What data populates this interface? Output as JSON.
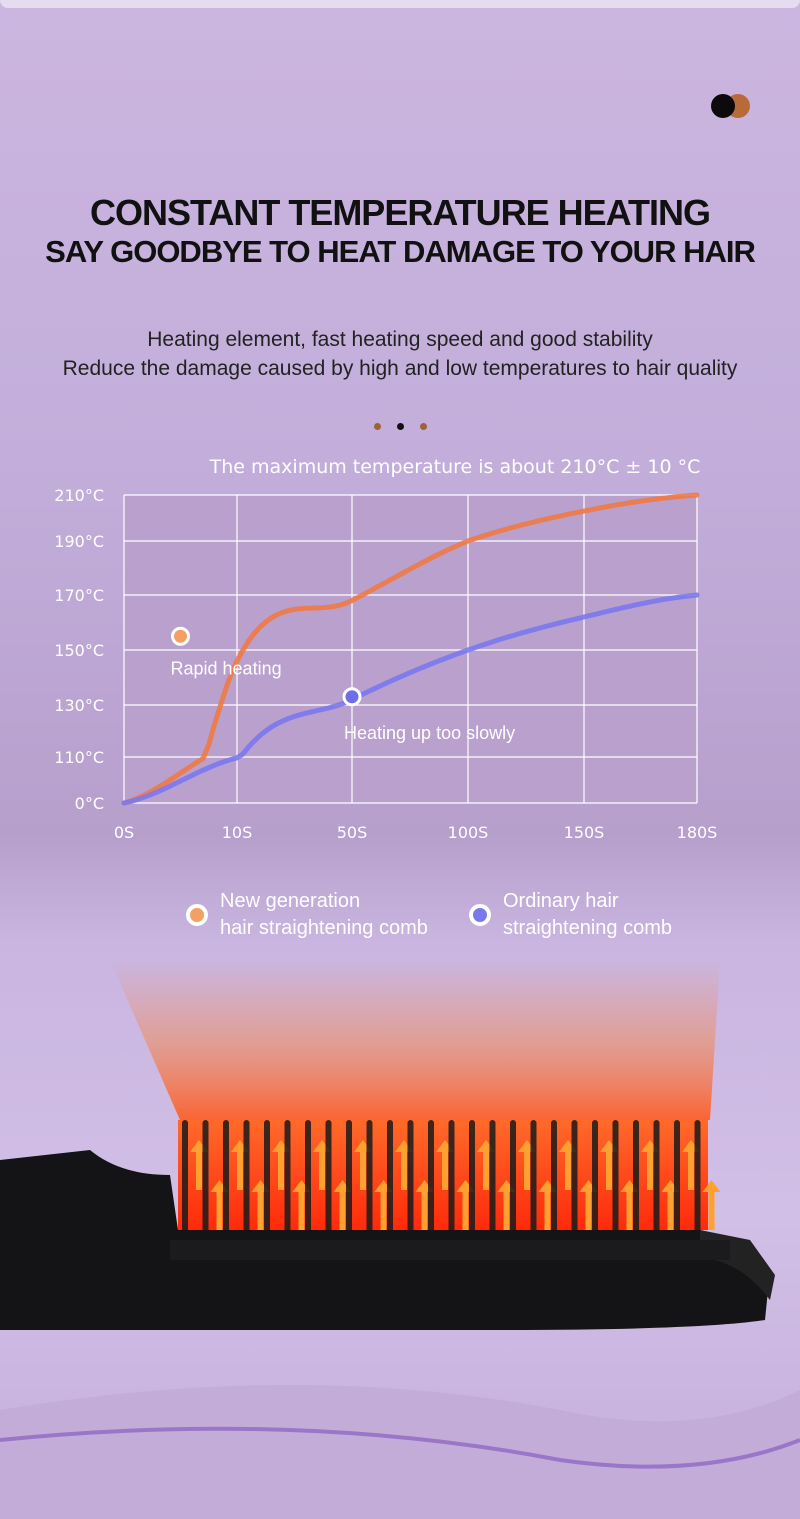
{
  "swatches": [
    {
      "color": "#0d0a0c"
    },
    {
      "color": "#b86a38"
    }
  ],
  "header": {
    "title": "CONSTANT TEMPERATURE HEATING",
    "subtitle": "SAY GOODBYE TO HEAT DAMAGE TO YOUR HAIR",
    "line1": "Heating element, fast heating speed and good stability",
    "line2": "Reduce the damage caused by high and low temperatures to hair quality"
  },
  "dots": [
    {
      "color": "#a0603a"
    },
    {
      "color": "#111111"
    },
    {
      "color": "#a0603a"
    }
  ],
  "chart_data": {
    "type": "line",
    "title": "The maximum temperature is about 210°C  ± 10 °C",
    "categories": [
      "0S",
      "10S",
      "50S",
      "100S",
      "150S",
      "180S"
    ],
    "y_ticks": [
      "0°C",
      "110°C",
      "130°C",
      "150°C",
      "170°C",
      "190°C",
      "210°C"
    ],
    "y_tick_values": [
      0,
      110,
      130,
      150,
      170,
      190,
      210
    ],
    "grid": true,
    "series": [
      {
        "name": "New generation hair straightening comb",
        "color": "#f07a45",
        "values": [
          0,
          146,
          168,
          190,
          203,
          210
        ],
        "marker": {
          "category_index": 0.5,
          "value": 155,
          "label": "Rapid heating"
        }
      },
      {
        "name": "Ordinary hair straightening comb",
        "color": "#7b78ee",
        "values": [
          0,
          108,
          132,
          150,
          162,
          170
        ],
        "marker": {
          "category_index": 2,
          "value": 133,
          "label": "Heating up too slowly"
        }
      }
    ],
    "legend": "bottom",
    "legend_labels": [
      [
        "New generation",
        "hair straightening comb"
      ],
      [
        "Ordinary hair",
        "straightening comb"
      ]
    ]
  }
}
